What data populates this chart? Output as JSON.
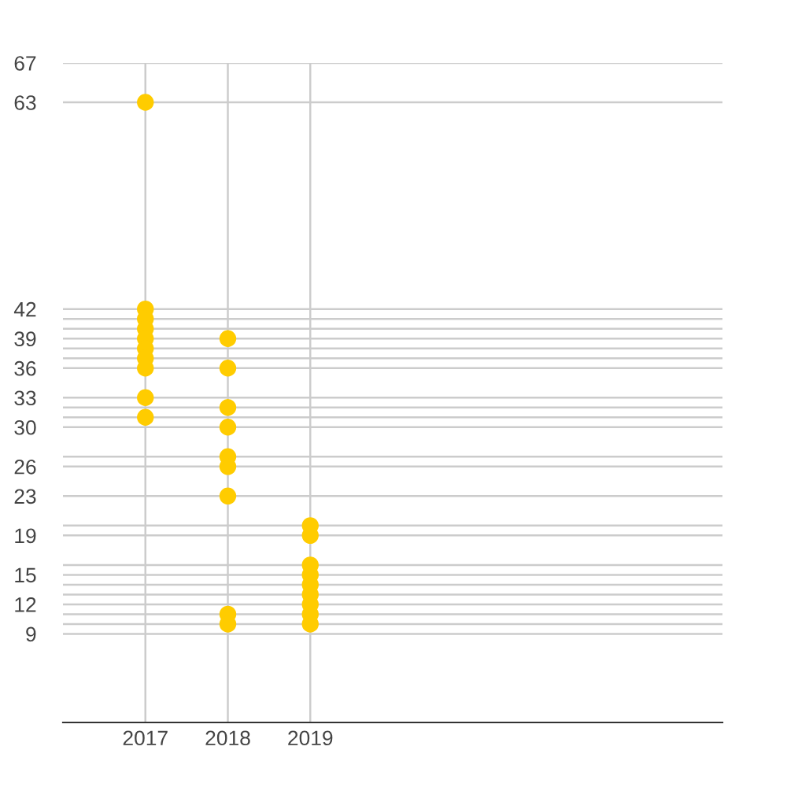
{
  "chart_data": {
    "type": "scatter",
    "x": [
      2017,
      2017,
      2017,
      2017,
      2017,
      2017,
      2017,
      2017,
      2017,
      2017,
      2018,
      2018,
      2018,
      2018,
      2018,
      2018,
      2018,
      2018,
      2018,
      2019,
      2019,
      2019,
      2019,
      2019,
      2019,
      2019,
      2019,
      2019
    ],
    "series": [
      {
        "color": "#ffcc00",
        "values": [
          63,
          42,
          41,
          40,
          39,
          38,
          37,
          36,
          33,
          31,
          39,
          36,
          32,
          30,
          27,
          26,
          23,
          11,
          10,
          20,
          19,
          16,
          15,
          14,
          13,
          12,
          11,
          10
        ]
      }
    ],
    "xlim": [
      2016,
      2024
    ],
    "xticks": [
      2017,
      2018,
      2019
    ],
    "ylim": [
      0,
      67
    ],
    "yticks": [
      67,
      63,
      42,
      {
        "value": 41,
        "label": null
      },
      {
        "value": 40,
        "label": null
      },
      39,
      {
        "value": 38,
        "label": null
      },
      {
        "value": 37,
        "label": null
      },
      36,
      33,
      {
        "value": 32,
        "label": null
      },
      {
        "value": 31,
        "label": null
      },
      30,
      {
        "value": 27,
        "label": null
      },
      26,
      23,
      {
        "value": 20,
        "label": null
      },
      19,
      {
        "value": 16,
        "label": null
      },
      15,
      {
        "value": 14,
        "label": null
      },
      {
        "value": 13,
        "label": null
      },
      12,
      {
        "value": 11,
        "label": null
      },
      {
        "value": 10,
        "label": null
      },
      9
    ],
    "grid": true,
    "marker": "circle",
    "legend": false
  }
}
